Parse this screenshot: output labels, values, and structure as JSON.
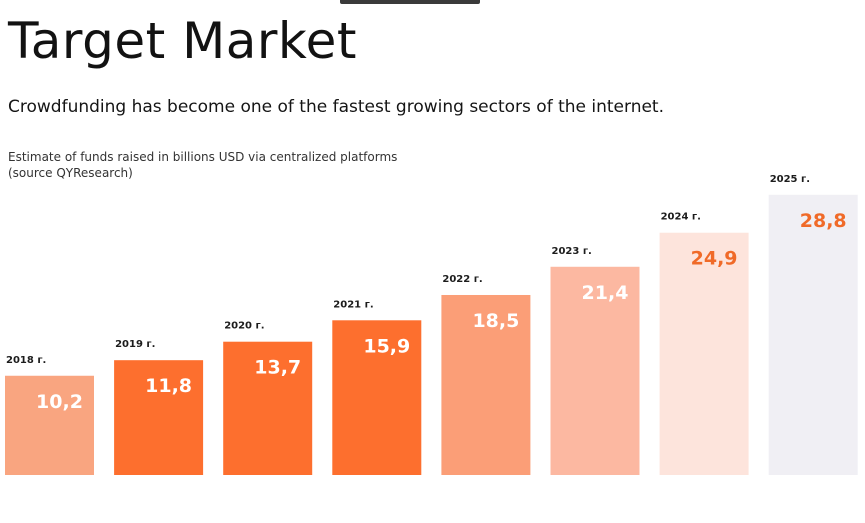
{
  "header": {
    "title": "Target Market",
    "subtitle": "Crowdfunding has become one of the fastest growing sectors of the internet.",
    "caption_line1": "Estimate of funds raised in billions USD via centralized platforms",
    "caption_line2": "(source QYResearch)"
  },
  "chart_data": {
    "type": "bar",
    "title": "Estimate of funds raised in billions USD via centralized platforms",
    "source": "(source QYResearch)",
    "xlabel": "",
    "ylabel": "",
    "unit": "billions USD",
    "categories": [
      "2018 г.",
      "2019 г.",
      "2020 г.",
      "2021 г.",
      "2022 г.",
      "2023 г.",
      "2024 г.",
      "2025 г."
    ],
    "values": [
      10.2,
      11.8,
      13.7,
      15.9,
      18.5,
      21.4,
      24.9,
      28.8
    ],
    "value_labels": [
      "10,2",
      "11,8",
      "13,7",
      "15,9",
      "18,5",
      "21,4",
      "24,9",
      "28,8"
    ],
    "bar_colors": [
      "#f9a580",
      "#fd6f2e",
      "#fd6f2e",
      "#fd6f2e",
      "#fb9e77",
      "#fcb8a1",
      "#fde4dc",
      "#f0eff4"
    ],
    "label_colors": [
      "#ffffff",
      "#ffffff",
      "#ffffff",
      "#ffffff",
      "#ffffff",
      "#ffffff",
      "#f06a28",
      "#f06a28"
    ],
    "ylim": [
      0,
      30
    ],
    "grid": false,
    "legend": "none"
  }
}
